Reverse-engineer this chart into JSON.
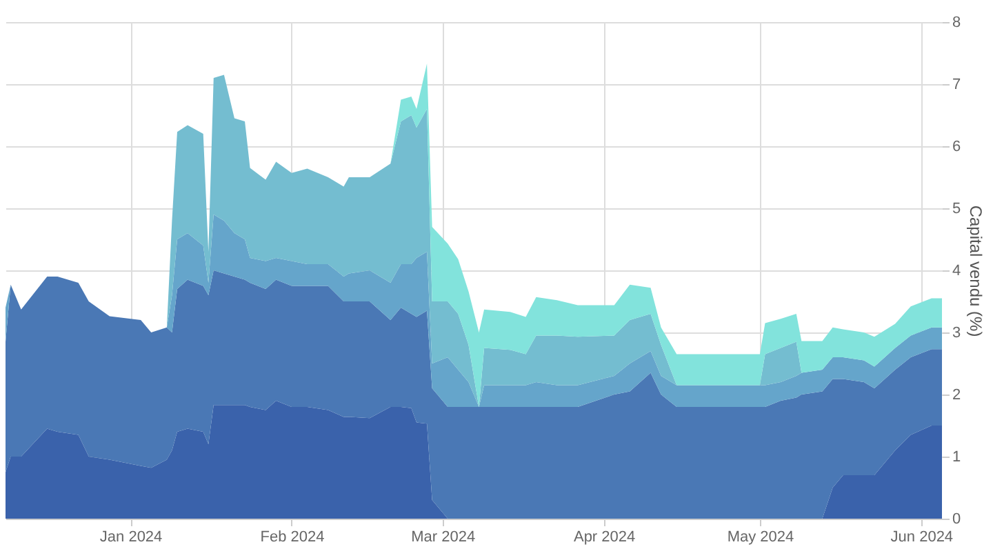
{
  "chart_data": {
    "type": "area",
    "stacked": true,
    "ylabel": "Capital vendu (%)",
    "legend": false,
    "grid": true,
    "x": [
      "2023-12-08",
      "2023-12-09",
      "2023-12-11",
      "2023-12-16",
      "2023-12-18",
      "2023-12-22",
      "2023-12-24",
      "2023-12-28",
      "2024-01-03",
      "2024-01-05",
      "2024-01-08",
      "2024-01-09",
      "2024-01-10",
      "2024-01-12",
      "2024-01-15",
      "2024-01-16",
      "2024-01-17",
      "2024-01-19",
      "2024-01-21",
      "2024-01-23",
      "2024-01-24",
      "2024-01-27",
      "2024-01-29",
      "2024-02-01",
      "2024-02-04",
      "2024-02-08",
      "2024-02-11",
      "2024-02-12",
      "2024-02-16",
      "2024-02-20",
      "2024-02-22",
      "2024-02-24",
      "2024-02-25",
      "2024-02-27",
      "2024-02-28",
      "2024-03-02",
      "2024-03-04",
      "2024-03-06",
      "2024-03-08",
      "2024-03-09",
      "2024-03-14",
      "2024-03-17",
      "2024-03-19",
      "2024-03-23",
      "2024-03-27",
      "2024-04-03",
      "2024-04-06",
      "2024-04-10",
      "2024-04-12",
      "2024-04-15",
      "2024-05-01",
      "2024-05-02",
      "2024-05-05",
      "2024-05-08",
      "2024-05-09",
      "2024-05-13",
      "2024-05-15",
      "2024-05-17",
      "2024-05-21",
      "2024-05-23",
      "2024-05-27",
      "2024-05-30",
      "2024-06-03",
      "2024-06-05"
    ],
    "series": [
      {
        "color": "#3a62ab",
        "values": [
          0.75,
          1.0,
          1.0,
          1.45,
          1.4,
          1.35,
          1.0,
          0.95,
          0.85,
          0.82,
          0.95,
          1.1,
          1.4,
          1.45,
          1.4,
          1.2,
          1.83,
          1.83,
          1.83,
          1.83,
          1.8,
          1.75,
          1.9,
          1.8,
          1.8,
          1.75,
          1.64,
          1.64,
          1.62,
          1.8,
          1.8,
          1.78,
          1.55,
          1.53,
          0.3,
          0,
          0,
          0,
          0,
          0,
          0,
          0,
          0,
          0,
          0,
          0,
          0,
          0,
          0,
          0,
          0,
          0,
          0,
          0,
          0,
          0,
          0.5,
          0.7,
          0.7,
          0.7,
          1.1,
          1.35,
          1.5,
          1.5
        ]
      },
      {
        "color": "#4a78b5",
        "values": [
          2.1,
          2.77,
          2.37,
          2.45,
          2.5,
          2.45,
          2.5,
          2.31,
          2.35,
          2.18,
          2.13,
          1.9,
          2.3,
          2.4,
          2.35,
          2.4,
          2.17,
          2.12,
          2.07,
          2.02,
          2.0,
          1.95,
          1.95,
          1.95,
          1.95,
          2.0,
          1.86,
          1.86,
          1.88,
          1.4,
          1.6,
          1.52,
          1.7,
          1.82,
          1.8,
          1.8,
          1.8,
          1.8,
          1.8,
          1.8,
          1.8,
          1.8,
          1.8,
          1.8,
          1.8,
          2.0,
          2.05,
          2.35,
          2.0,
          1.8,
          1.8,
          1.8,
          1.9,
          1.95,
          2.0,
          2.05,
          1.75,
          1.55,
          1.5,
          1.4,
          1.3,
          1.25,
          1.23,
          1.23
        ]
      },
      {
        "color": "#65a5cb",
        "values": [
          0.55,
          0,
          0,
          0,
          0,
          0,
          0,
          0,
          0,
          0,
          0,
          0.6,
          0.8,
          0.75,
          0.65,
          0.2,
          0.9,
          0.85,
          0.7,
          0.65,
          0.4,
          0.45,
          0.35,
          0.4,
          0.35,
          0.35,
          0.4,
          0.45,
          0.5,
          0.6,
          0.7,
          0.8,
          0.95,
          0.95,
          0.4,
          0.8,
          0.6,
          0.4,
          0,
          0.35,
          0.35,
          0.35,
          0.4,
          0.35,
          0.35,
          0.3,
          0.45,
          0.35,
          0.3,
          0.35,
          0.35,
          0.35,
          0.3,
          0.35,
          0.35,
          0.35,
          0.35,
          0.35,
          0.35,
          0.35,
          0.35,
          0.35,
          0.35,
          0.35
        ]
      },
      {
        "color": "#74bdd0",
        "values": [
          0,
          0,
          0,
          0,
          0,
          0,
          0,
          0,
          0,
          0,
          0,
          1.2,
          1.73,
          1.74,
          1.8,
          0.5,
          2.2,
          2.35,
          1.85,
          1.9,
          1.45,
          1.31,
          1.55,
          1.42,
          1.54,
          1.4,
          1.45,
          1.55,
          1.5,
          1.92,
          2.3,
          2.4,
          2.1,
          2.3,
          1.0,
          0.9,
          0.9,
          0.6,
          0,
          0.6,
          0.57,
          0.5,
          0.75,
          0.8,
          0.78,
          0.65,
          0.7,
          0.6,
          0.5,
          0,
          0,
          0.5,
          0.55,
          0.55,
          0,
          0,
          0,
          0,
          0,
          0,
          0,
          0,
          0,
          0
        ]
      },
      {
        "color": "#82e3dc",
        "values": [
          0,
          0,
          0,
          0,
          0,
          0,
          0,
          0,
          0,
          0,
          0,
          0,
          0,
          0,
          0,
          0,
          0,
          0,
          0,
          0,
          0,
          0,
          0,
          0,
          0,
          0,
          0,
          0,
          0,
          0,
          0.35,
          0.3,
          0.3,
          0.73,
          1.2,
          0.93,
          0.88,
          0.86,
          1.2,
          0.62,
          0.61,
          0.6,
          0.62,
          0.57,
          0.51,
          0.49,
          0.57,
          0.42,
          0.28,
          0.5,
          0.5,
          0.5,
          0.47,
          0.45,
          0.51,
          0.46,
          0.48,
          0.45,
          0.45,
          0.48,
          0.39,
          0.47,
          0.47,
          0.47
        ]
      }
    ],
    "xlim": [
      "2023-12-08",
      "2024-06-05"
    ],
    "xticks": [
      {
        "value": "2024-01-01",
        "label": "Jan 2024"
      },
      {
        "value": "2024-02-01",
        "label": "Feb 2024"
      },
      {
        "value": "2024-03-01",
        "label": "Mar 2024"
      },
      {
        "value": "2024-04-01",
        "label": "Apr 2024"
      },
      {
        "value": "2024-05-01",
        "label": "May 2024"
      },
      {
        "value": "2024-06-01",
        "label": "Jun 2024"
      }
    ],
    "ylim": [
      0,
      8
    ],
    "yticks": [
      0,
      1,
      2,
      3,
      4,
      5,
      6,
      7,
      8
    ]
  }
}
